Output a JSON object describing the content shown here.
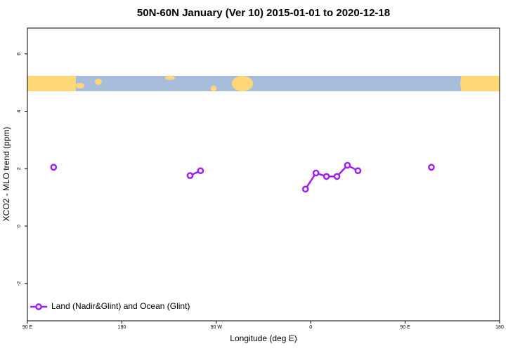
{
  "chart_data": {
    "type": "line",
    "title": "50N-60N January (Ver 10)   2015-01-01 to 2020-12-18",
    "x_label": "Longitude (deg E)",
    "y_label": "XCO2 - MLO trend (ppm)",
    "x": [
      95,
      105,
      115,
      125,
      135,
      145,
      155,
      165,
      175,
      185,
      195,
      205,
      215,
      225,
      235,
      245,
      255,
      265,
      275,
      285,
      295,
      305,
      315,
      325,
      335,
      345,
      355,
      365,
      375,
      385,
      395,
      405,
      415,
      425,
      435,
      445,
      455,
      465,
      475,
      485,
      495,
      505,
      515,
      525,
      535
    ],
    "series": [
      {
        "name": "Land (Nadir&Glint) and Ocean (Glint)",
        "color": "#a020f0",
        "values": [
          null,
          null,
          2.05,
          null,
          null,
          null,
          null,
          null,
          null,
          null,
          null,
          null,
          null,
          null,
          null,
          1.76,
          1.93,
          null,
          null,
          null,
          null,
          null,
          null,
          null,
          null,
          null,
          1.29,
          1.85,
          1.73,
          1.73,
          2.12,
          1.93,
          null,
          null,
          null,
          null,
          null,
          null,
          2.05,
          null,
          null,
          null,
          null,
          null,
          null
        ]
      }
    ],
    "xlim": [
      90,
      540
    ],
    "xticks": [
      {
        "value": 90,
        "label": "90 E"
      },
      180,
      {
        "value": 270,
        "label": "90 W"
      },
      {
        "value": 360,
        "label": "0"
      },
      {
        "value": 450,
        "label": "90 E"
      },
      {
        "value": 540,
        "label": "180"
      }
    ],
    "ylim": [
      -3.3,
      6.9
    ],
    "yticks": [
      -2,
      0,
      2,
      4,
      6
    ],
    "legend_position": "bottom-left"
  }
}
